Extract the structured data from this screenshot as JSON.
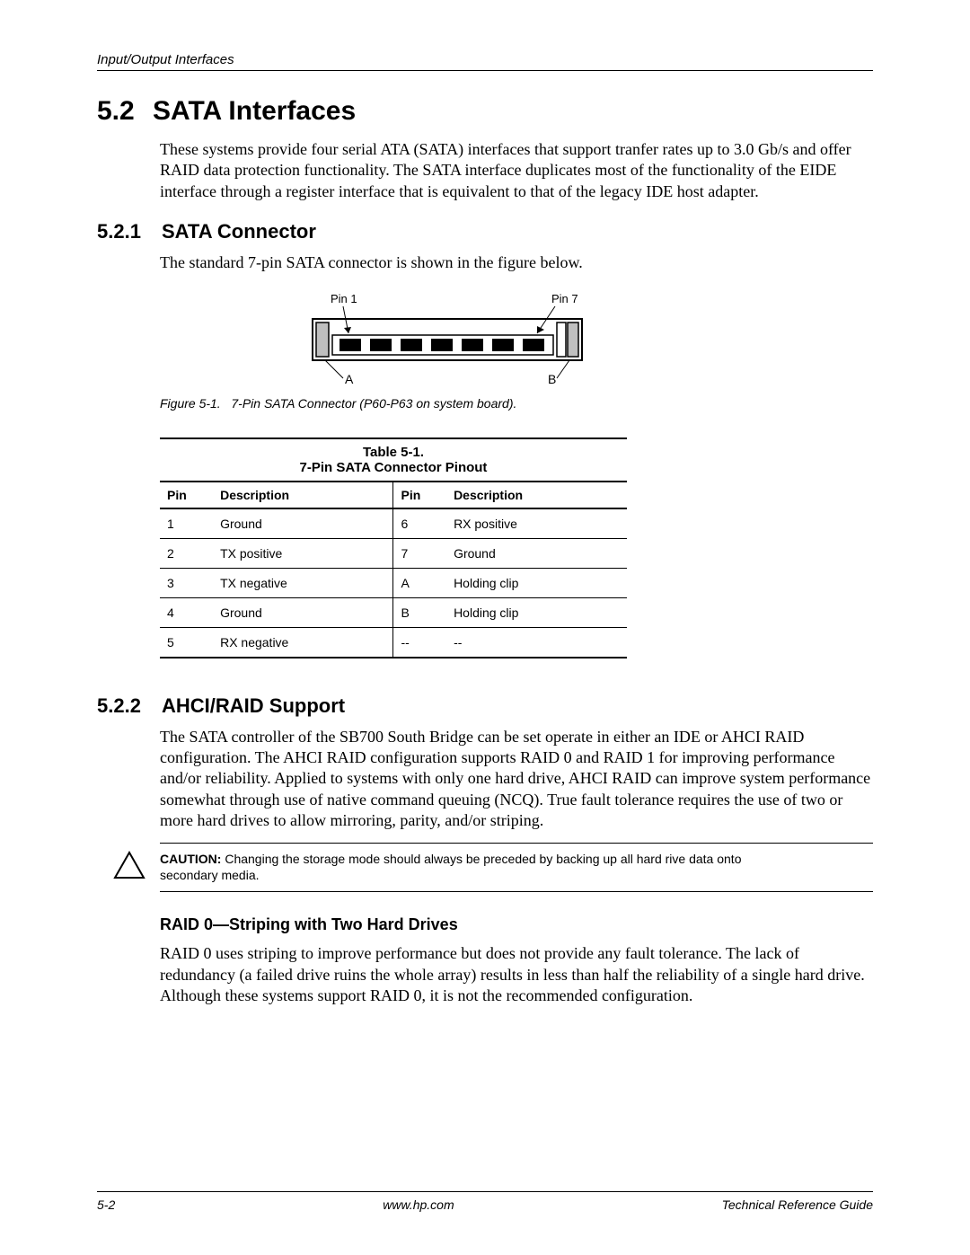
{
  "header": {
    "chapter": "Input/Output Interfaces"
  },
  "sec52": {
    "num": "5.2",
    "title": "SATA Interfaces",
    "intro": "These systems provide four serial ATA (SATA) interfaces that support tranfer rates up to 3.0 Gb/s and offer RAID data protection functionality. The SATA interface duplicates most of the functionality of the EIDE interface through a register interface that is equivalent to that of the legacy IDE host adapter."
  },
  "sec521": {
    "num": "5.2.1",
    "title": "SATA Connector",
    "intro": "The standard 7-pin SATA connector is shown in the figure below."
  },
  "figure": {
    "pin1_label": "Pin 1",
    "pin7_label": "Pin 7",
    "a_label": "A",
    "b_label": "B",
    "caption_prefix": "Figure 5-1.",
    "caption_text": "7-Pin SATA Connector (P60-P63 on system board).",
    "colors": {
      "stroke": "#000000",
      "fill_outer": "#ffffff",
      "fill_clip": "#bfbfbf",
      "fill_pin": "#000000"
    }
  },
  "table": {
    "label": "Table 5-1.",
    "title": "7-Pin SATA Connector Pinout",
    "headers": [
      "Pin",
      "Description",
      "Pin",
      "Description"
    ],
    "rows": [
      [
        "1",
        "Ground",
        "6",
        "RX positive"
      ],
      [
        "2",
        "TX positive",
        "7",
        "Ground"
      ],
      [
        "3",
        "TX negative",
        "A",
        "Holding clip"
      ],
      [
        "4",
        "Ground",
        "B",
        "Holding clip"
      ],
      [
        "5",
        "RX negative",
        "--",
        "--"
      ]
    ]
  },
  "sec522": {
    "num": "5.2.2",
    "title": "AHCI/RAID Support",
    "intro": "The SATA controller of the SB700 South Bridge can be set operate in either an IDE or AHCI RAID configuration. The AHCI RAID configuration supports RAID 0 and RAID 1 for improving performance and/or reliability. Applied to systems with only one hard drive, AHCI RAID can improve system performance somewhat through use of native command queuing (NCQ). True fault tolerance requires the use of two or more hard drives to allow mirroring, parity, and/or striping."
  },
  "caution": {
    "label": "CAUTION:",
    "text": "Changing the storage mode should always be preceded by backing up all hard rive data onto secondary media."
  },
  "raid0": {
    "title": "RAID 0—Striping with Two Hard Drives",
    "text": "RAID 0 uses striping to improve performance but does not provide any fault tolerance. The lack of redundancy (a failed drive ruins the whole array) results in less than half the reliability of a single hard drive. Although these systems support RAID 0, it is not the recommended configuration."
  },
  "footer": {
    "page": "5-2",
    "url": "www.hp.com",
    "guide": "Technical Reference Guide"
  }
}
